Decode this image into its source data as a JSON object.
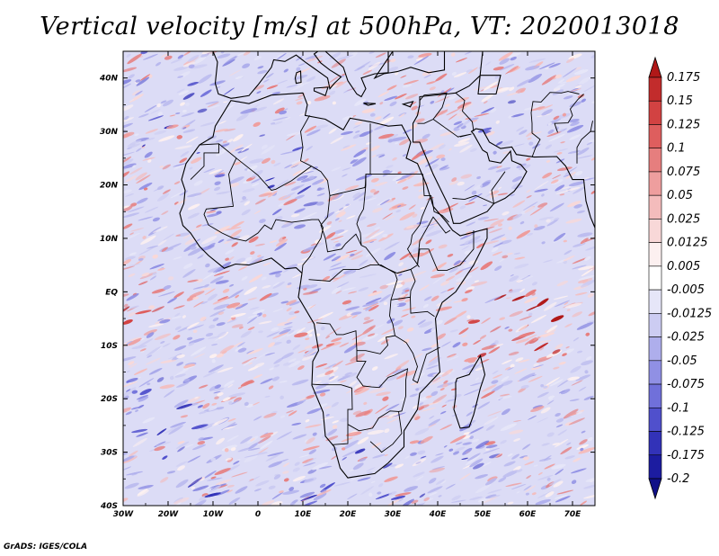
{
  "title": "Vertical velocity [m/s] at 500hPa, VT: 2020013018",
  "credit": "GrADS: IGES/COLA",
  "map": {
    "lon_range": [
      -30,
      75
    ],
    "lat_range": [
      -40,
      45
    ],
    "x_ticks": [
      {
        "lon": -30,
        "label": "30W"
      },
      {
        "lon": -20,
        "label": "20W"
      },
      {
        "lon": -10,
        "label": "10W"
      },
      {
        "lon": 0,
        "label": "0"
      },
      {
        "lon": 10,
        "label": "10E"
      },
      {
        "lon": 20,
        "label": "20E"
      },
      {
        "lon": 30,
        "label": "30E"
      },
      {
        "lon": 40,
        "label": "40E"
      },
      {
        "lon": 50,
        "label": "50E"
      },
      {
        "lon": 60,
        "label": "60E"
      },
      {
        "lon": 70,
        "label": "70E"
      }
    ],
    "y_ticks": [
      {
        "lat": 40,
        "label": "40N"
      },
      {
        "lat": 30,
        "label": "30N"
      },
      {
        "lat": 20,
        "label": "20N"
      },
      {
        "lat": 10,
        "label": "10N"
      },
      {
        "lat": 0,
        "label": "EQ"
      },
      {
        "lat": -10,
        "label": "10S"
      },
      {
        "lat": -20,
        "label": "20S"
      },
      {
        "lat": -30,
        "label": "30S"
      },
      {
        "lat": -40,
        "label": "40S"
      }
    ]
  },
  "colorbar": {
    "labels": [
      "0.175",
      "0.15",
      "0.125",
      "0.1",
      "0.075",
      "0.05",
      "0.025",
      "0.0125",
      "0.005",
      "-0.005",
      "-0.0125",
      "-0.025",
      "-0.05",
      "-0.075",
      "-0.1",
      "-0.125",
      "-0.175",
      "-0.2"
    ],
    "colors": [
      "#b01818",
      "#c22c2c",
      "#d24242",
      "#de5e5e",
      "#e67e7e",
      "#ee9e9e",
      "#f4bcbc",
      "#f8d8d8",
      "#fcf0f0",
      "#ffffff",
      "#e6e6f8",
      "#ccccf2",
      "#aeaeec",
      "#9090e4",
      "#7070da",
      "#5050cc",
      "#3232b8",
      "#1c1ca0",
      "#101088"
    ]
  }
}
